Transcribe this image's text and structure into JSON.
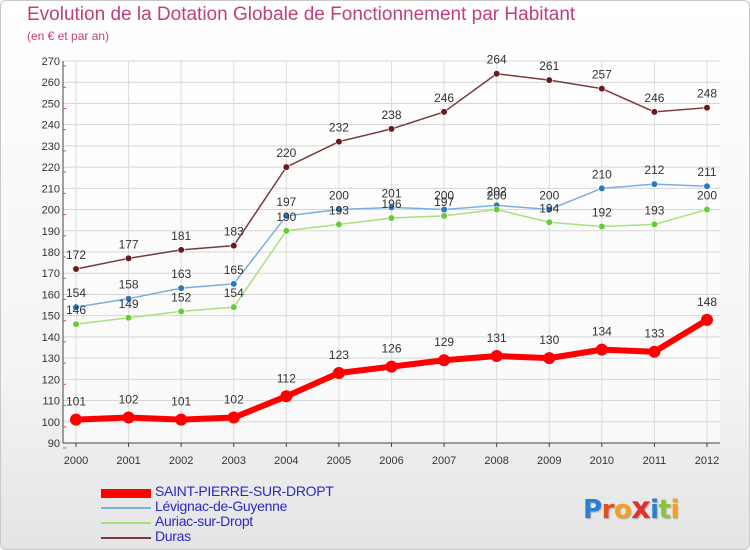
{
  "chart_data": {
    "type": "line",
    "title": "Evolution de la Dotation Globale de Fonctionnement par Habitant",
    "subtitle": "(en € et par an)",
    "categories": [
      "2000",
      "2001",
      "2002",
      "2003",
      "2004",
      "2005",
      "2006",
      "2007",
      "2008",
      "2009",
      "2010",
      "2011",
      "2012"
    ],
    "ylim": [
      90,
      270
    ],
    "yticks": [
      90,
      100,
      110,
      120,
      130,
      140,
      150,
      160,
      170,
      180,
      190,
      200,
      210,
      220,
      230,
      240,
      250,
      260,
      270
    ],
    "grid": true,
    "legend_position": "bottom-left",
    "series": [
      {
        "name": "SAINT-PIERRE-SUR-DROPT",
        "color": "#ff0000",
        "marker": "#ff0000",
        "width": 6,
        "values": [
          101,
          102,
          101,
          102,
          112,
          123,
          126,
          129,
          131,
          130,
          134,
          133,
          148
        ],
        "labels": [
          "101",
          "102",
          "101",
          "102",
          "112",
          "123",
          "126",
          "129",
          "131",
          "130",
          "134",
          "133",
          "148"
        ]
      },
      {
        "name": "Lévignac-de-Guyenne",
        "color": "#7aaee0",
        "marker": "#2a78c0",
        "width": 1.5,
        "values": [
          154,
          158,
          163,
          165,
          197,
          200,
          201,
          200,
          202,
          200,
          210,
          212,
          211
        ],
        "labels": [
          "154",
          "158",
          "163",
          "165",
          "197",
          "200",
          "201",
          "200",
          "202",
          "200",
          "210",
          "212",
          "211"
        ]
      },
      {
        "name": "Auriac-sur-Dropt",
        "color": "#a8e080",
        "marker": "#66cc33",
        "width": 1.5,
        "values": [
          146,
          149,
          152,
          154,
          190,
          193,
          196,
          197,
          200,
          194,
          192,
          193,
          200
        ],
        "labels": [
          "146",
          "149",
          "152",
          "154",
          "190",
          "193",
          "196",
          "197",
          "200",
          "194",
          "192",
          "193",
          "200"
        ]
      },
      {
        "name": "Duras",
        "color": "#7a3a3a",
        "marker": "#6a1a1a",
        "width": 1.5,
        "values": [
          172,
          177,
          181,
          183,
          220,
          232,
          238,
          246,
          264,
          261,
          257,
          246,
          248
        ],
        "labels": [
          "172",
          "177",
          "181",
          "183",
          "220",
          "232",
          "238",
          "246",
          "264",
          "261",
          "257",
          "246",
          "248"
        ]
      }
    ]
  },
  "logo": {
    "text": "Proxiti"
  }
}
